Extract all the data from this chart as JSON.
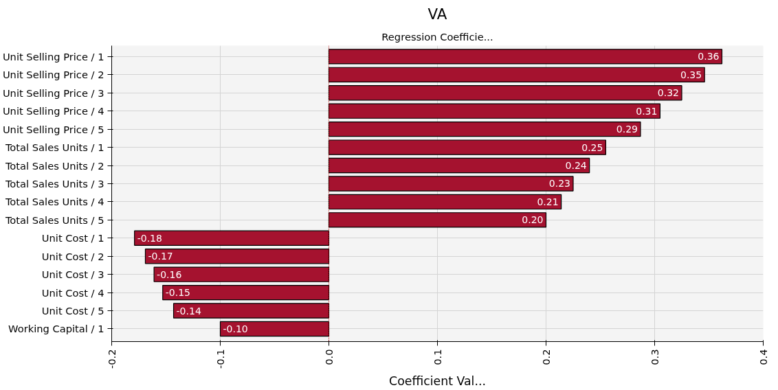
{
  "chart_data": {
    "type": "bar",
    "orientation": "horizontal",
    "title": "VA",
    "subtitle": "Regression Coefficie...",
    "xlabel": "Coefficient Val...",
    "categories": [
      "Unit Selling Price / 1",
      "Unit Selling Price / 2",
      "Unit Selling Price / 3",
      "Unit Selling Price / 4",
      "Unit Selling Price / 5",
      "Total Sales Units / 1",
      "Total Sales Units / 2",
      "Total Sales Units / 3",
      "Total Sales Units / 4",
      "Total Sales Units / 5",
      "Unit Cost / 1",
      "Unit Cost / 2",
      "Unit Cost / 3",
      "Unit Cost / 4",
      "Unit Cost / 5",
      "Working Capital / 1"
    ],
    "values": [
      0.362,
      0.346,
      0.325,
      0.305,
      0.287,
      0.255,
      0.24,
      0.225,
      0.214,
      0.2,
      -0.179,
      -0.169,
      -0.161,
      -0.153,
      -0.143,
      -0.1
    ],
    "value_labels": [
      "0.36",
      "0.35",
      "0.32",
      "0.31",
      "0.29",
      "0.25",
      "0.24",
      "0.23",
      "0.21",
      "0.20",
      "-0.18",
      "-0.17",
      "-0.16",
      "-0.15",
      "-0.14",
      "-0.10"
    ],
    "color": "#a5122f",
    "xlim": [
      -0.2,
      0.4
    ],
    "xticks": [
      -0.2,
      -0.1,
      {
        "value": 0,
        "label": "0.0"
      },
      0.1,
      0.2,
      0.3,
      0.4
    ],
    "ref_lines": [
      {
        "axis": "x",
        "value": 0,
        "color": "#e00000",
        "line_style": "dotted"
      }
    ],
    "grid": true
  }
}
